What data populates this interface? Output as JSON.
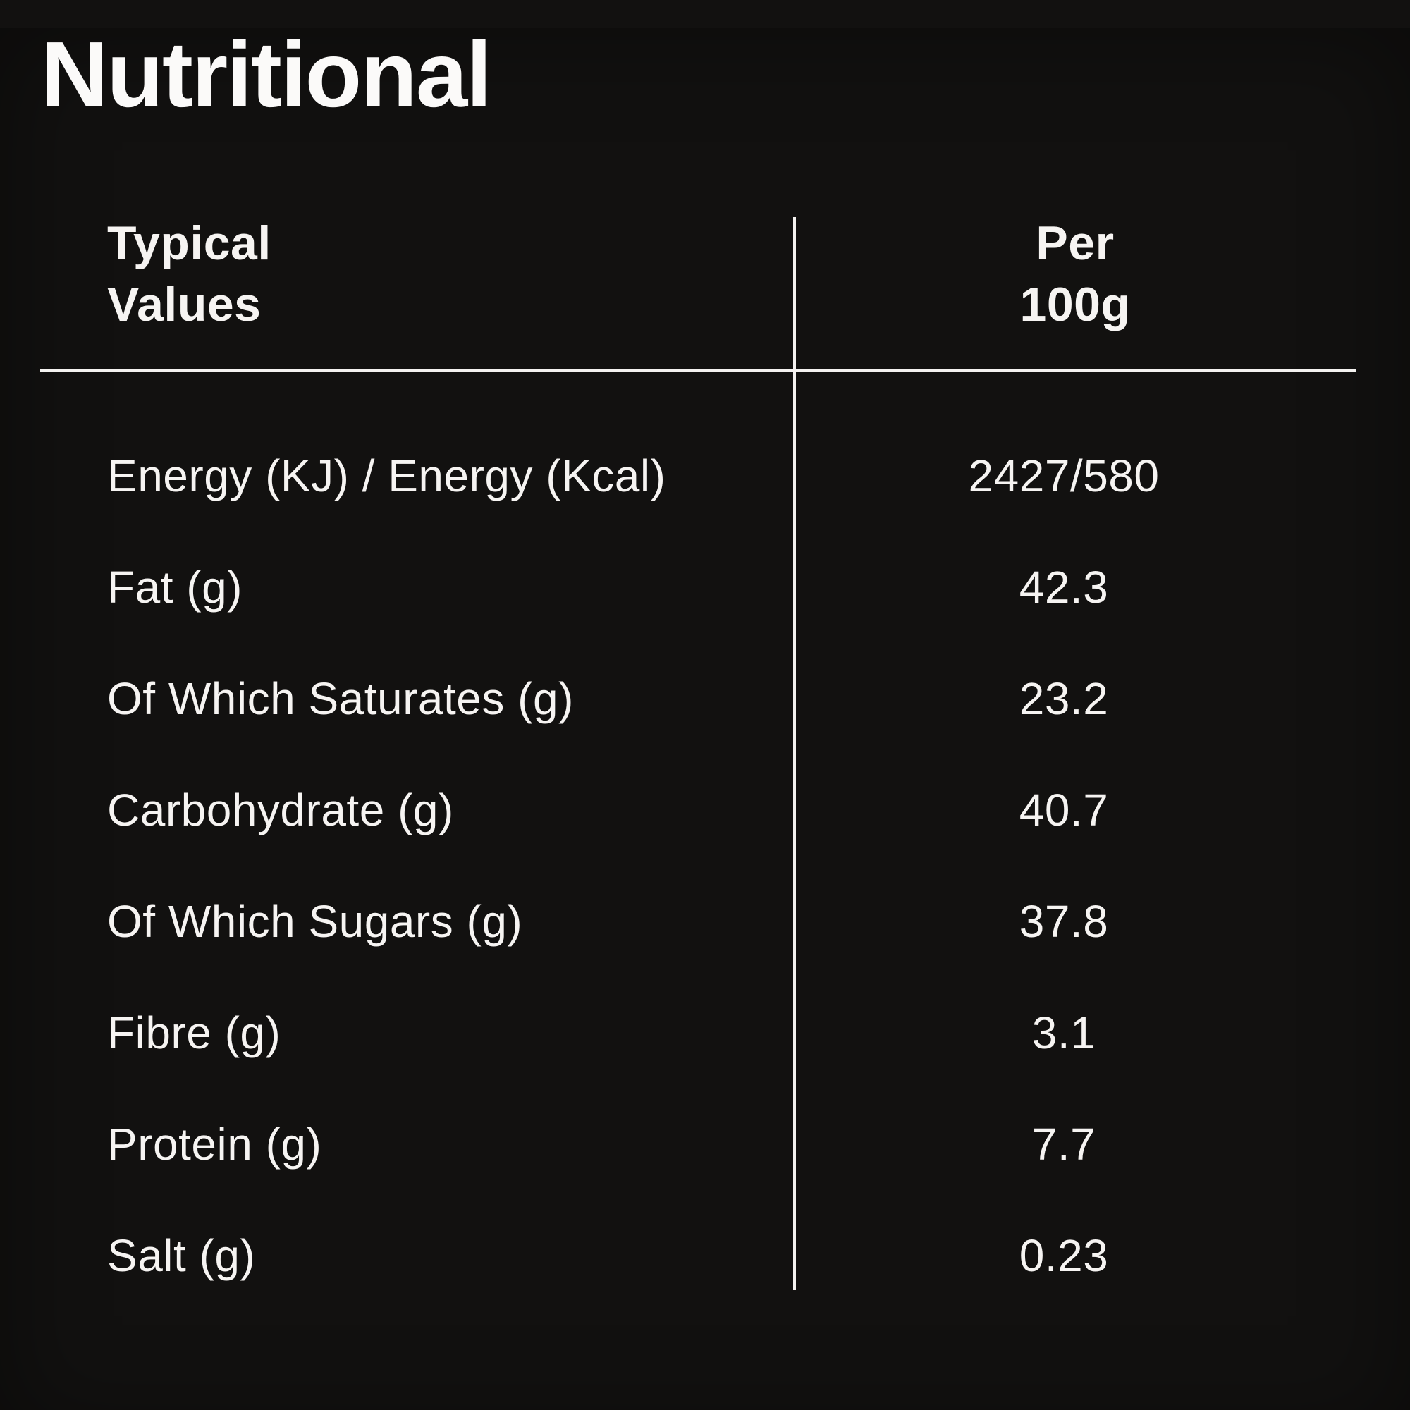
{
  "page": {
    "title": "Nutritional",
    "background_color": "#121110",
    "text_color": "#f6f4f2",
    "divider_color": "#f4f2f0"
  },
  "table": {
    "header": {
      "col1_line1": "Typical",
      "col1_line2": "Values",
      "col2_line1": "Per",
      "col2_line2": "100g"
    },
    "rows": [
      {
        "label": "Energy (KJ) / Energy (Kcal)",
        "value": "2427/580"
      },
      {
        "label": "Fat (g)",
        "value": "42.3"
      },
      {
        "label": "Of Which Saturates (g)",
        "value": "23.2"
      },
      {
        "label": "Carbohydrate (g)",
        "value": "40.7"
      },
      {
        "label": "Of Which Sugars (g)",
        "value": "37.8"
      },
      {
        "label": "Fibre (g)",
        "value": "3.1"
      },
      {
        "label": "Protein (g)",
        "value": "7.7"
      },
      {
        "label": "Salt (g)",
        "value": "0.23"
      }
    ]
  }
}
